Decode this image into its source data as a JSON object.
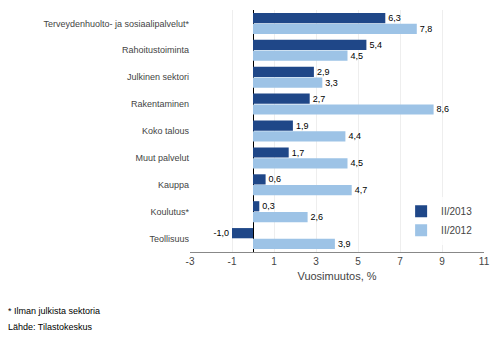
{
  "chart_data": {
    "type": "bar",
    "orientation": "horizontal",
    "categories": [
      "Terveydenhuolto- ja sosiaalipalvelut*",
      "Rahoitustoiminta",
      "Julkinen sektori",
      "Rakentaminen",
      "Koko talous",
      "Muut palvelut",
      "Kauppa",
      "Koulutus*",
      "Teollisuus"
    ],
    "series": [
      {
        "name": "II/2013",
        "color": "#1F4788",
        "values": [
          6.3,
          5.4,
          2.9,
          2.7,
          1.9,
          1.7,
          0.6,
          0.3,
          -1.0
        ],
        "value_labels": [
          "6,3",
          "5,4",
          "2,9",
          "2,7",
          "1,9",
          "1,7",
          "0,6",
          "0,3",
          "-1,0"
        ]
      },
      {
        "name": "II/2012",
        "color": "#9DC3E6",
        "values": [
          7.8,
          4.5,
          3.3,
          8.6,
          4.4,
          4.5,
          4.7,
          2.6,
          3.9
        ],
        "value_labels": [
          "7,8",
          "4,5",
          "3,3",
          "8,6",
          "4,4",
          "4,5",
          "4,7",
          "2,6",
          "3,9"
        ]
      }
    ],
    "xlabel": "Vuosimuutos, %",
    "xlim": [
      -3,
      11
    ],
    "xticks": [
      -3,
      -1,
      1,
      3,
      5,
      7,
      9,
      11
    ],
    "grid": true,
    "legend": "lower right",
    "data_labels": true,
    "annotations": [
      "* Ilman julkista sektoria",
      "Lähde: Tilastokeskus"
    ]
  }
}
